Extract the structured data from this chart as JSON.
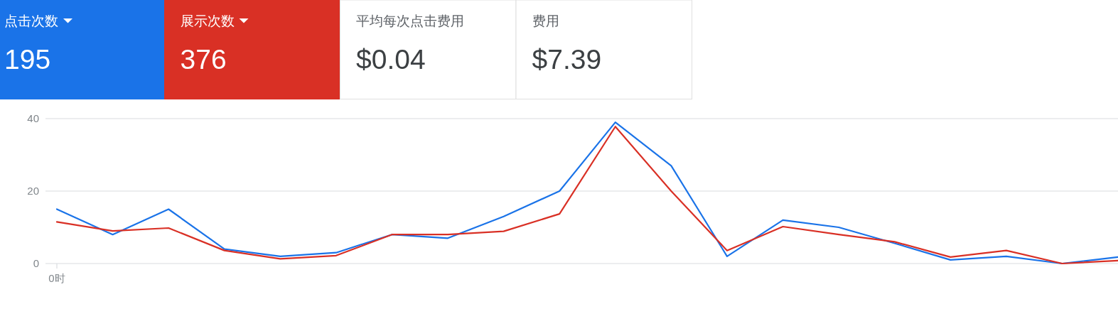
{
  "chart_data": {
    "type": "line",
    "categories": [
      "0时",
      null,
      null,
      null,
      null,
      null,
      null,
      null,
      null,
      null,
      null,
      null,
      null,
      null,
      null,
      null,
      null,
      null,
      null,
      null
    ],
    "series": [
      {
        "name": "点击次数",
        "color": "#1a73e8",
        "values": [
          15,
          8,
          15,
          4,
          2,
          3,
          8,
          7,
          13,
          20,
          39,
          27,
          2,
          12,
          10,
          5.6,
          1,
          2,
          0,
          1.8
        ]
      },
      {
        "name": "展示次数",
        "color": "#d93025",
        "values": [
          11.5,
          9,
          9.8,
          3.6,
          1.3,
          2.2,
          8,
          8,
          8.9,
          13.7,
          37.8,
          20,
          3.6,
          10.2,
          8,
          6,
          1.8,
          3.6,
          0,
          0.8
        ]
      }
    ],
    "ylim": [
      0,
      40
    ],
    "yticks": [
      0,
      20,
      40
    ],
    "grid": "y",
    "legend": "top left",
    "annotations": [
      "195",
      "376",
      "平均每次点击费用",
      "$0.04",
      "费用",
      "$7.39"
    ]
  }
}
